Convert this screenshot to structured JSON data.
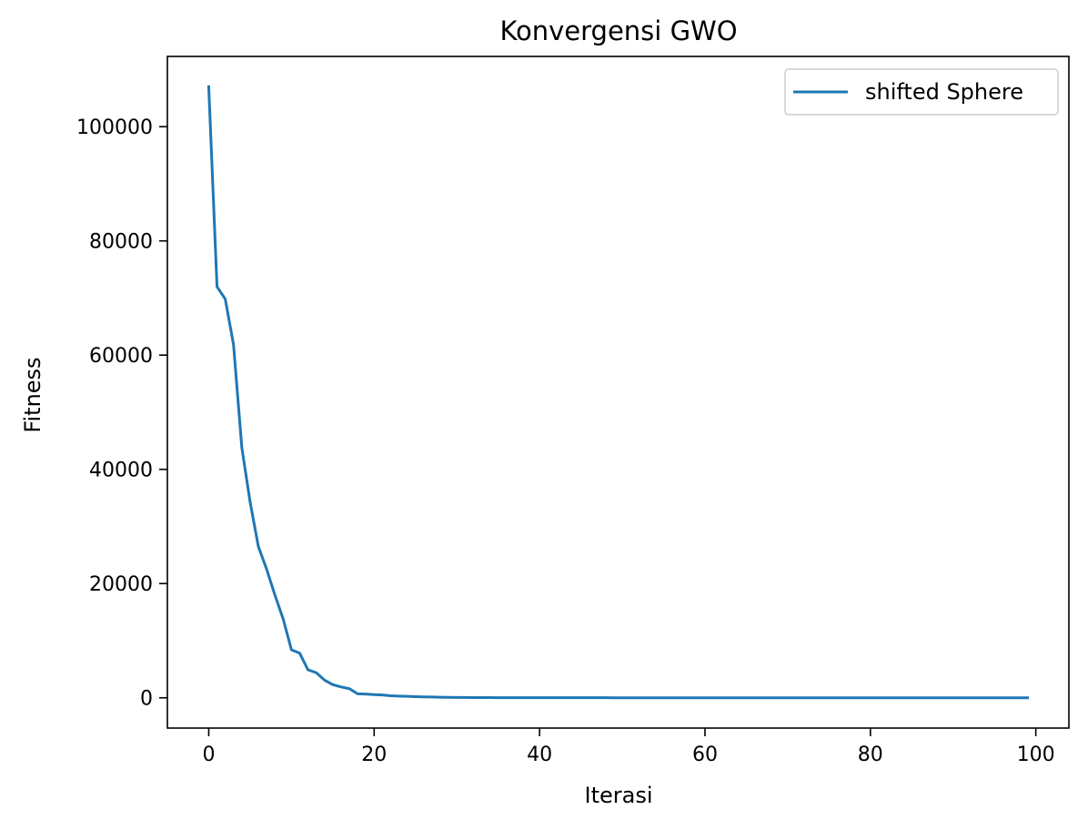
{
  "chart_data": {
    "type": "line",
    "title": "Konvergensi GWO",
    "xlabel": "Iterasi",
    "ylabel": "Fitness",
    "xlim": [
      -5,
      104
    ],
    "ylim": [
      -5300,
      112300
    ],
    "x_ticks": [
      0,
      20,
      40,
      60,
      80,
      100
    ],
    "y_ticks": [
      0,
      20000,
      40000,
      60000,
      80000,
      100000
    ],
    "grid": false,
    "legend_position": "upper-right",
    "series": [
      {
        "name": "shifted Sphere",
        "color": "#1f77b4",
        "x": [
          0,
          1,
          2,
          3,
          4,
          5,
          6,
          7,
          8,
          9,
          10,
          11,
          12,
          13,
          14,
          15,
          16,
          17,
          18,
          19,
          20,
          21,
          22,
          23,
          24,
          25,
          26,
          27,
          28,
          29,
          30,
          31,
          32,
          33,
          34,
          35,
          36,
          37,
          38,
          39,
          40,
          41,
          42,
          43,
          44,
          45,
          46,
          47,
          48,
          49,
          50,
          51,
          52,
          53,
          54,
          55,
          56,
          57,
          58,
          59,
          60,
          61,
          62,
          63,
          64,
          65,
          66,
          67,
          68,
          69,
          70,
          71,
          72,
          73,
          74,
          75,
          76,
          77,
          78,
          79,
          80,
          81,
          82,
          83,
          84,
          85,
          86,
          87,
          88,
          89,
          90,
          91,
          92,
          93,
          94,
          95,
          96,
          97,
          98,
          99
        ],
        "values": [
          107000,
          72000,
          69800,
          61800,
          43800,
          34300,
          26500,
          22500,
          18000,
          13800,
          8400,
          7800,
          4900,
          4400,
          3100,
          2300,
          1900,
          1600,
          700,
          650,
          550,
          500,
          350,
          300,
          250,
          200,
          160,
          130,
          100,
          80,
          65,
          50,
          40,
          35,
          30,
          25,
          22,
          20,
          18,
          16,
          15,
          14,
          13,
          12,
          11,
          10,
          10,
          9,
          9,
          8,
          8,
          7,
          7,
          7,
          6,
          6,
          6,
          5,
          5,
          5,
          5,
          4,
          4,
          4,
          4,
          4,
          3,
          3,
          3,
          3,
          3,
          3,
          3,
          2,
          2,
          2,
          2,
          2,
          2,
          2,
          2,
          2,
          2,
          2,
          1,
          1,
          1,
          1,
          1,
          1,
          1,
          1,
          1,
          1,
          1,
          1,
          1,
          1,
          1,
          1
        ]
      }
    ]
  }
}
